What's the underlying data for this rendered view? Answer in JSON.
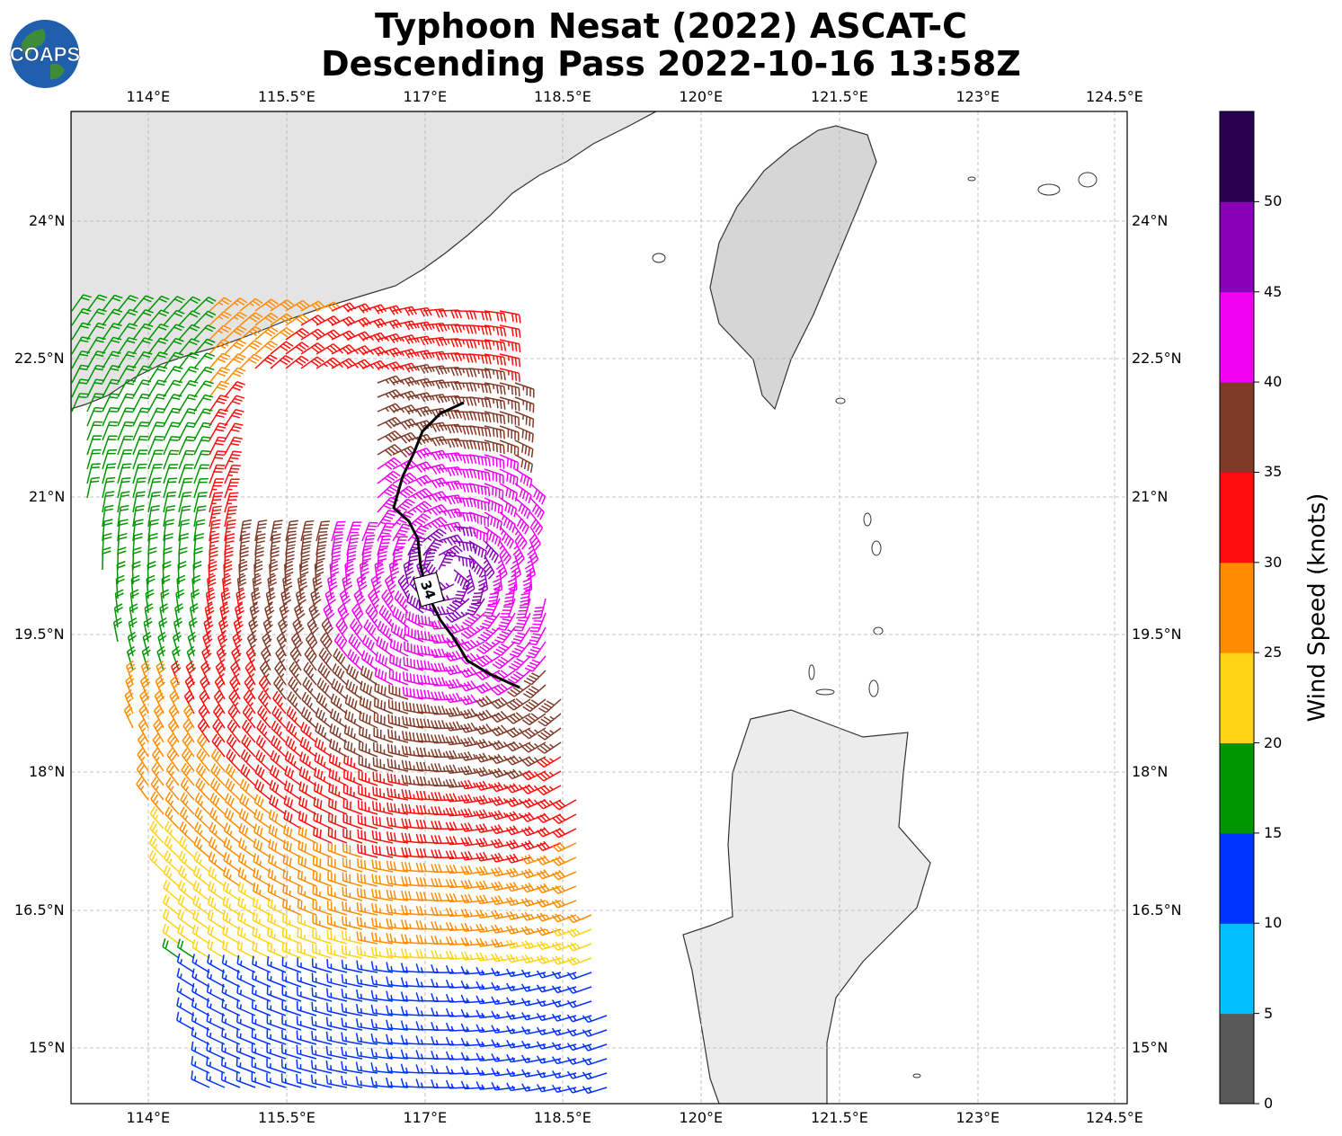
{
  "header": {
    "line1": "Typhoon Nesat (2022) ASCAT-C",
    "line2": "Descending Pass 2022-10-16 13:58Z"
  },
  "logo": {
    "text": "COAPS",
    "icon": "globe-icon"
  },
  "axes": {
    "lon_labels": [
      "114°E",
      "115.5°E",
      "117°E",
      "118.5°E",
      "120°E",
      "121.5°E",
      "123°E",
      "124.5°E"
    ],
    "lat_labels": [
      "24°N",
      "22.5°N",
      "21°N",
      "19.5°N",
      "18°N",
      "16.5°N",
      "15°N"
    ]
  },
  "contour_label": "34",
  "colorbar": {
    "label": "Wind Speed (knots)",
    "ticks": [
      "0",
      "5",
      "10",
      "15",
      "20",
      "25",
      "30",
      "35",
      "40",
      "45",
      "50"
    ],
    "colors": [
      "#595959",
      "#00bfff",
      "#0033ff",
      "#009600",
      "#ffd316",
      "#ff8c00",
      "#ff0d0d",
      "#803a28",
      "#f000f0",
      "#8800b8",
      "#2c0050"
    ]
  },
  "colors": {
    "land": "#f2f2f2",
    "grid": "#b0b0b0",
    "coast": "#333333"
  }
}
